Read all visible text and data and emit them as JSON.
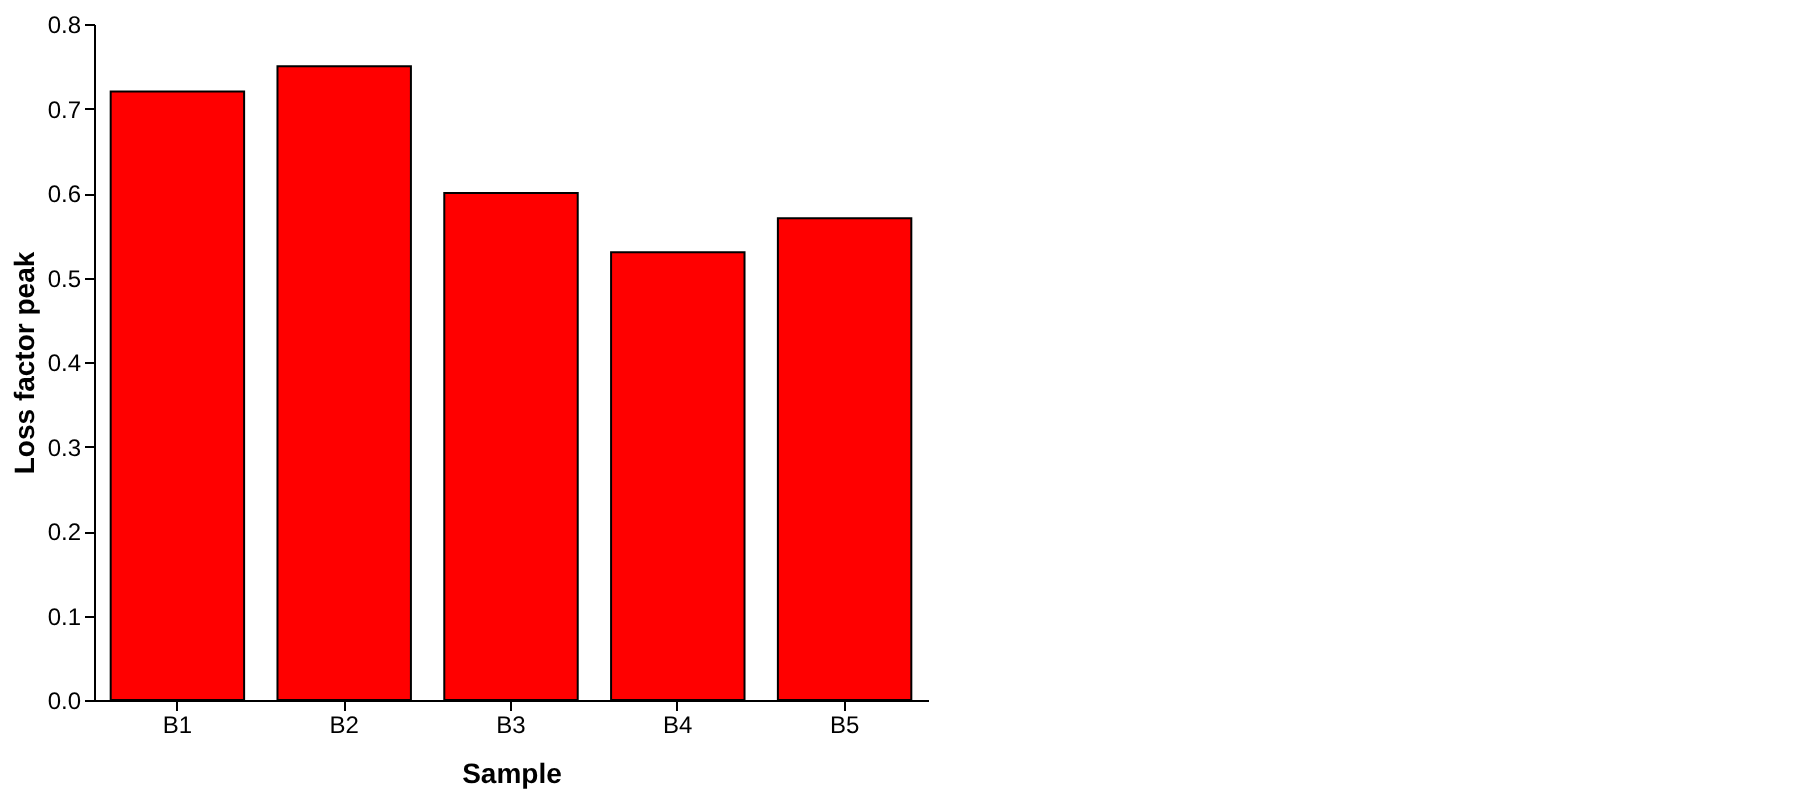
{
  "chart_data": {
    "type": "bar",
    "xlabel": "Sample",
    "ylabel": "Loss factor peak",
    "categories": [
      "B1",
      "B2",
      "B3",
      "B4",
      "B5"
    ],
    "values": [
      0.72,
      0.75,
      0.6,
      0.53,
      0.57
    ],
    "color": "#ff0000",
    "ylim": [
      0,
      0.8
    ],
    "yticks": [
      {
        "value": 0,
        "label": "0.0"
      },
      0.1,
      0.2,
      0.3,
      0.4,
      0.5,
      0.6,
      0.7,
      0.8
    ],
    "grid": false
  }
}
